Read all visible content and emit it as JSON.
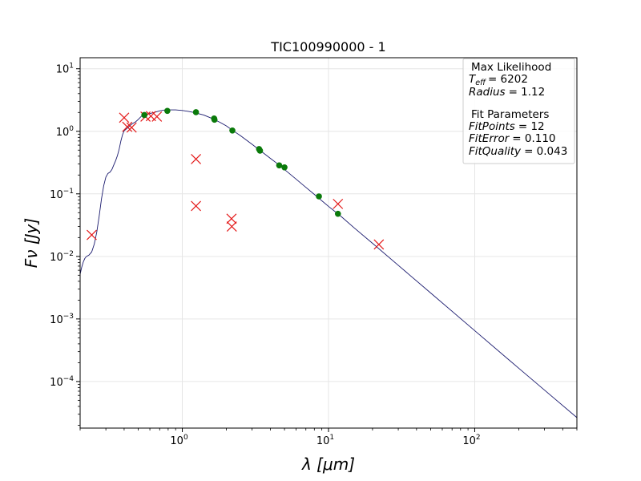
{
  "chart_data": {
    "type": "scatter",
    "title": "TIC100990000 - 1",
    "xlabel": "λ [μm]",
    "ylabel": "Fν [Jy]",
    "xscale": "log",
    "yscale": "log",
    "xlim": [
      0.2,
      500
    ],
    "ylim": [
      1.8e-05,
      15
    ],
    "grid": true,
    "x_ticks": [
      {
        "value": 1,
        "label": "10",
        "exp": "0"
      },
      {
        "value": 10,
        "label": "10",
        "exp": "1"
      },
      {
        "value": 100,
        "label": "10",
        "exp": "2"
      }
    ],
    "y_ticks": [
      {
        "value": 0.0001,
        "label": "10",
        "exp": "−4"
      },
      {
        "value": 0.001,
        "label": "10",
        "exp": "−3"
      },
      {
        "value": 0.01,
        "label": "10",
        "exp": "−2"
      },
      {
        "value": 0.1,
        "label": "10",
        "exp": "−1"
      },
      {
        "value": 1,
        "label": "10",
        "exp": "0"
      },
      {
        "value": 10,
        "label": "10",
        "exp": "1"
      }
    ],
    "model_curve": {
      "color": "#1a1a6e",
      "points": [
        [
          0.2,
          0.0052
        ],
        [
          0.205,
          0.0067
        ],
        [
          0.21,
          0.0081
        ],
        [
          0.215,
          0.0092
        ],
        [
          0.22,
          0.0099
        ],
        [
          0.23,
          0.0105
        ],
        [
          0.24,
          0.0118
        ],
        [
          0.25,
          0.0158
        ],
        [
          0.26,
          0.0245
        ],
        [
          0.27,
          0.044
        ],
        [
          0.28,
          0.083
        ],
        [
          0.29,
          0.135
        ],
        [
          0.3,
          0.185
        ],
        [
          0.31,
          0.212
        ],
        [
          0.32,
          0.222
        ],
        [
          0.33,
          0.245
        ],
        [
          0.34,
          0.29
        ],
        [
          0.35,
          0.34
        ],
        [
          0.36,
          0.41
        ],
        [
          0.37,
          0.52
        ],
        [
          0.38,
          0.7
        ],
        [
          0.39,
          0.88
        ],
        [
          0.4,
          1.02
        ],
        [
          0.42,
          1.12
        ],
        [
          0.45,
          1.3
        ],
        [
          0.48,
          1.42
        ],
        [
          0.5,
          1.55
        ],
        [
          0.53,
          1.78
        ],
        [
          0.56,
          1.86
        ],
        [
          0.6,
          1.92
        ],
        [
          0.65,
          2.02
        ],
        [
          0.7,
          2.12
        ],
        [
          0.75,
          2.18
        ],
        [
          0.8,
          2.2
        ],
        [
          0.9,
          2.2
        ],
        [
          1.0,
          2.15
        ],
        [
          1.1,
          2.08
        ],
        [
          1.2,
          2.0
        ],
        [
          1.4,
          1.82
        ],
        [
          1.6,
          1.6
        ],
        [
          1.8,
          1.4
        ],
        [
          2.0,
          1.22
        ],
        [
          2.2,
          1.04
        ],
        [
          2.5,
          0.85
        ],
        [
          3.0,
          0.62
        ],
        [
          3.5,
          0.47
        ],
        [
          4.0,
          0.37
        ],
        [
          4.5,
          0.3
        ],
        [
          5.0,
          0.245
        ],
        [
          6.0,
          0.172
        ],
        [
          7.0,
          0.127
        ],
        [
          8.0,
          0.098
        ],
        [
          10.0,
          0.063
        ],
        [
          12.0,
          0.045
        ],
        [
          15.0,
          0.0285
        ],
        [
          20.0,
          0.0162
        ],
        [
          30.0,
          0.0072
        ],
        [
          50.0,
          0.0026
        ],
        [
          100.0,
          0.00065
        ],
        [
          200.0,
          0.000163
        ],
        [
          300.0,
          7.3e-05
        ],
        [
          500.0,
          2.65e-05
        ]
      ]
    },
    "fit_points": {
      "color": "#0a7a0a",
      "points": [
        [
          0.55,
          1.82
        ],
        [
          0.79,
          2.12
        ],
        [
          1.24,
          2.02
        ],
        [
          1.65,
          1.6
        ],
        [
          1.66,
          1.53
        ],
        [
          2.2,
          1.03
        ],
        [
          3.35,
          0.52
        ],
        [
          3.4,
          0.49
        ],
        [
          4.6,
          0.285
        ],
        [
          5.0,
          0.265
        ],
        [
          8.6,
          0.091
        ],
        [
          11.6,
          0.048
        ]
      ]
    },
    "excluded_points": {
      "color": "#e41a1a",
      "points": [
        [
          0.24,
          0.022
        ],
        [
          0.4,
          1.65
        ],
        [
          0.42,
          1.18
        ],
        [
          0.45,
          1.15
        ],
        [
          0.56,
          1.72
        ],
        [
          0.61,
          1.75
        ],
        [
          0.67,
          1.72
        ],
        [
          1.24,
          0.36
        ],
        [
          1.24,
          0.064
        ],
        [
          2.17,
          0.04
        ],
        [
          2.18,
          0.03
        ],
        [
          11.6,
          0.069
        ],
        [
          22.1,
          0.0155
        ]
      ]
    },
    "legend": {
      "placement": "top-right",
      "heading1": "Max Likelihood",
      "teff_label": "T",
      "teff_sub": "eff",
      "teff_value": "= 6202",
      "radius_label": "Radius",
      "radius_value": "= 1.12",
      "heading2": "Fit Parameters",
      "fitpoints_label": "FitPoints",
      "fitpoints_value": "= 12",
      "fiterror_label": "FitError",
      "fiterror_value": "= 0.110",
      "fitquality_label": "FitQuality",
      "fitquality_value": "= 0.043"
    }
  }
}
